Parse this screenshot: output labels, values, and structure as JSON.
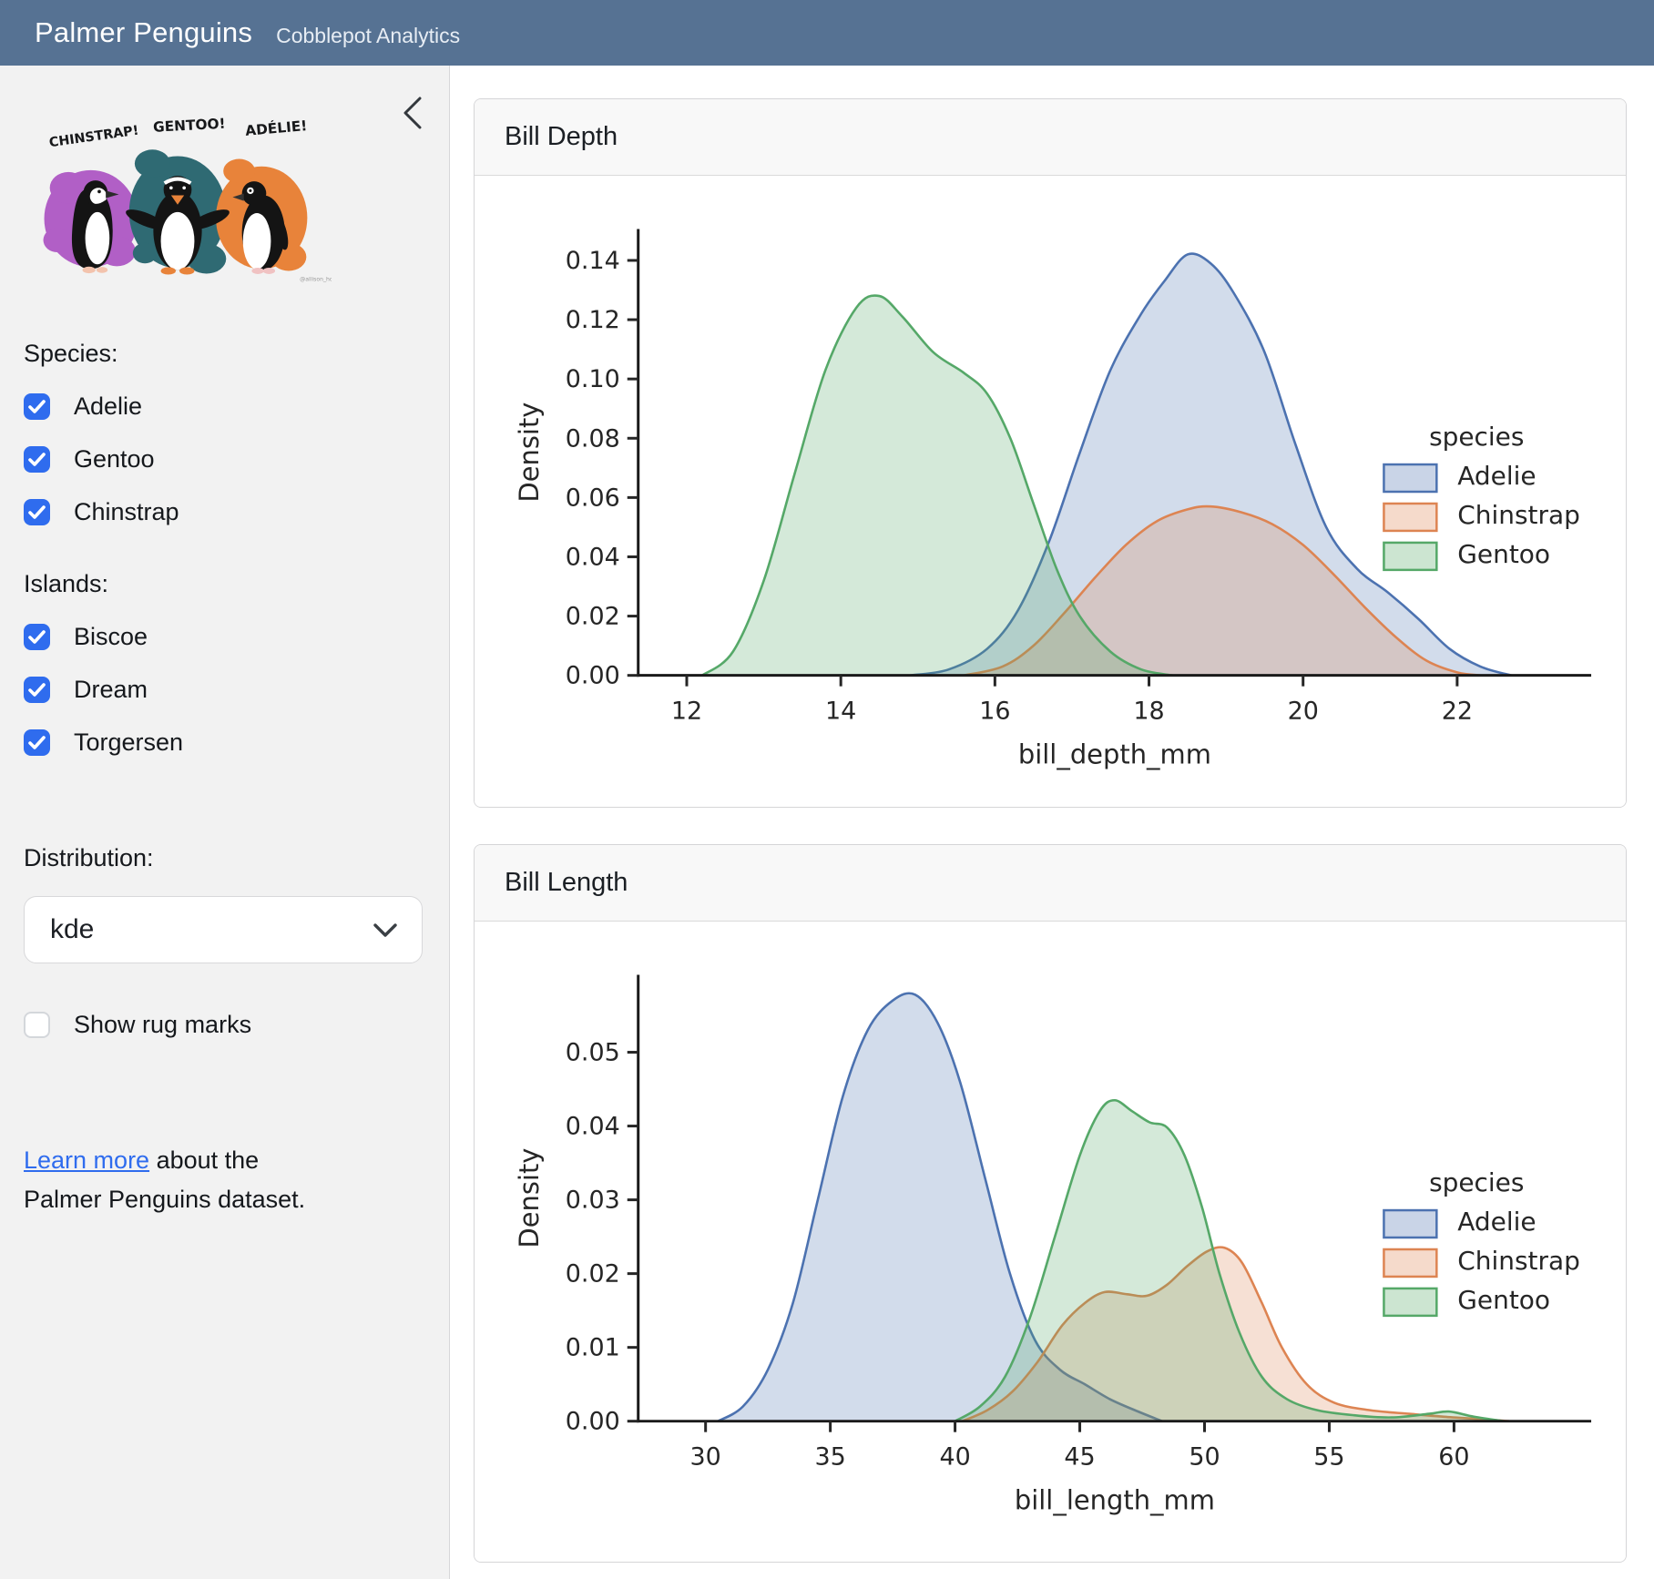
{
  "header": {
    "title": "Palmer Penguins",
    "subtitle": "Cobblepot Analytics"
  },
  "sidebar": {
    "artwork": {
      "labels": [
        "CHINSTRAP!",
        "GENTOO!",
        "ADÉLIE!"
      ],
      "credit": "@allison_horst",
      "blob_colors": [
        "#b15fc6",
        "#2f6a73",
        "#e8833a"
      ]
    },
    "species": {
      "heading": "Species:",
      "options": [
        {
          "label": "Adelie",
          "checked": true
        },
        {
          "label": "Gentoo",
          "checked": true
        },
        {
          "label": "Chinstrap",
          "checked": true
        }
      ]
    },
    "islands": {
      "heading": "Islands:",
      "options": [
        {
          "label": "Biscoe",
          "checked": true
        },
        {
          "label": "Dream",
          "checked": true
        },
        {
          "label": "Torgersen",
          "checked": true
        }
      ]
    },
    "distribution": {
      "heading": "Distribution:",
      "value": "kde"
    },
    "rug": {
      "label": "Show rug marks",
      "checked": false
    },
    "footer": {
      "link_text": "Learn more",
      "text_after": " about the Palmer Penguins dataset."
    }
  },
  "cards": [
    {
      "title": "Bill Depth"
    },
    {
      "title": "Bill Length"
    }
  ],
  "colors": {
    "header_bg": "#567293",
    "accent_blue": "#2f6cee",
    "adelie": "#4c72b0",
    "chinstrap": "#dd8452",
    "gentoo": "#55a868",
    "axis": "#262626"
  },
  "chart_data": [
    {
      "type": "area",
      "kind": "kde-density",
      "title": "Bill Depth",
      "xlabel": "bill_depth_mm",
      "ylabel": "Density",
      "xlim": [
        11.37,
        23.74
      ],
      "ylim": [
        0,
        0.1506
      ],
      "xticks": [
        12,
        14,
        16,
        18,
        20,
        22
      ],
      "yticks": [
        0,
        0.02,
        0.04,
        0.06,
        0.08,
        0.1,
        0.12,
        0.14
      ],
      "ytick_decimals": 2,
      "grid": false,
      "legend": {
        "title": "species",
        "position": "center-right"
      },
      "series": [
        {
          "name": "Adelie",
          "color": "#4c72b0",
          "points": [
            [
              14.9,
              0
            ],
            [
              15.4,
              0.002
            ],
            [
              15.9,
              0.009
            ],
            [
              16.3,
              0.022
            ],
            [
              16.7,
              0.045
            ],
            [
              17.1,
              0.075
            ],
            [
              17.5,
              0.103
            ],
            [
              17.9,
              0.122
            ],
            [
              18.2,
              0.133
            ],
            [
              18.5,
              0.142
            ],
            [
              18.8,
              0.139
            ],
            [
              19.1,
              0.129
            ],
            [
              19.5,
              0.109
            ],
            [
              19.9,
              0.078
            ],
            [
              20.3,
              0.05
            ],
            [
              20.7,
              0.036
            ],
            [
              21.1,
              0.028
            ],
            [
              21.5,
              0.019
            ],
            [
              21.9,
              0.009
            ],
            [
              22.3,
              0.003
            ],
            [
              22.7,
              0
            ]
          ]
        },
        {
          "name": "Chinstrap",
          "color": "#dd8452",
          "points": [
            [
              15.6,
              0
            ],
            [
              16.1,
              0.003
            ],
            [
              16.5,
              0.01
            ],
            [
              16.9,
              0.021
            ],
            [
              17.3,
              0.033
            ],
            [
              17.7,
              0.044
            ],
            [
              18.1,
              0.052
            ],
            [
              18.5,
              0.056
            ],
            [
              18.8,
              0.057
            ],
            [
              19.2,
              0.055
            ],
            [
              19.6,
              0.051
            ],
            [
              20.0,
              0.044
            ],
            [
              20.4,
              0.034
            ],
            [
              20.8,
              0.023
            ],
            [
              21.2,
              0.013
            ],
            [
              21.6,
              0.005
            ],
            [
              22.0,
              0.001
            ],
            [
              22.3,
              0
            ]
          ]
        },
        {
          "name": "Gentoo",
          "color": "#55a868",
          "points": [
            [
              12.2,
              0
            ],
            [
              12.6,
              0.008
            ],
            [
              13.0,
              0.032
            ],
            [
              13.4,
              0.068
            ],
            [
              13.8,
              0.103
            ],
            [
              14.2,
              0.124
            ],
            [
              14.5,
              0.128
            ],
            [
              14.8,
              0.121
            ],
            [
              15.2,
              0.109
            ],
            [
              15.6,
              0.102
            ],
            [
              15.9,
              0.095
            ],
            [
              16.2,
              0.08
            ],
            [
              16.5,
              0.058
            ],
            [
              16.8,
              0.036
            ],
            [
              17.1,
              0.02
            ],
            [
              17.5,
              0.008
            ],
            [
              17.9,
              0.002
            ],
            [
              18.3,
              0
            ]
          ]
        }
      ]
    },
    {
      "type": "area",
      "kind": "kde-density",
      "title": "Bill Length",
      "xlabel": "bill_length_mm",
      "ylabel": "Density",
      "xlim": [
        27.3,
        65.5
      ],
      "ylim": [
        0,
        0.0605
      ],
      "xticks": [
        30,
        35,
        40,
        45,
        50,
        55,
        60
      ],
      "yticks": [
        0,
        0.01,
        0.02,
        0.03,
        0.04,
        0.05
      ],
      "ytick_decimals": 2,
      "grid": false,
      "legend": {
        "title": "species",
        "position": "center-right"
      },
      "series": [
        {
          "name": "Adelie",
          "color": "#4c72b0",
          "points": [
            [
              30.5,
              0
            ],
            [
              31.5,
              0.002
            ],
            [
              32.5,
              0.007
            ],
            [
              33.5,
              0.016
            ],
            [
              34.5,
              0.03
            ],
            [
              35.5,
              0.044
            ],
            [
              36.5,
              0.053
            ],
            [
              37.5,
              0.057
            ],
            [
              38.4,
              0.0578
            ],
            [
              39.3,
              0.054
            ],
            [
              40.2,
              0.046
            ],
            [
              41.2,
              0.033
            ],
            [
              42.2,
              0.02
            ],
            [
              43.2,
              0.011
            ],
            [
              44.2,
              0.007
            ],
            [
              45.2,
              0.005
            ],
            [
              46.2,
              0.003
            ],
            [
              47.2,
              0.0015
            ],
            [
              48.3,
              0
            ]
          ]
        },
        {
          "name": "Chinstrap",
          "color": "#dd8452",
          "points": [
            [
              40.3,
              0
            ],
            [
              41.3,
              0.0015
            ],
            [
              42.3,
              0.004
            ],
            [
              43.3,
              0.008
            ],
            [
              44.3,
              0.013
            ],
            [
              45.2,
              0.016
            ],
            [
              46.0,
              0.0175
            ],
            [
              46.9,
              0.0172
            ],
            [
              47.7,
              0.017
            ],
            [
              48.5,
              0.0185
            ],
            [
              49.3,
              0.021
            ],
            [
              50.1,
              0.023
            ],
            [
              50.8,
              0.0235
            ],
            [
              51.5,
              0.0215
            ],
            [
              52.3,
              0.016
            ],
            [
              53.1,
              0.01
            ],
            [
              54.1,
              0.005
            ],
            [
              55.2,
              0.0025
            ],
            [
              56.6,
              0.0015
            ],
            [
              58.2,
              0.001
            ],
            [
              59.6,
              0.0006
            ],
            [
              61.0,
              0.0003
            ],
            [
              62.2,
              0
            ]
          ]
        },
        {
          "name": "Gentoo",
          "color": "#55a868",
          "points": [
            [
              40.0,
              0
            ],
            [
              41.0,
              0.002
            ],
            [
              42.0,
              0.006
            ],
            [
              43.0,
              0.014
            ],
            [
              44.0,
              0.025
            ],
            [
              45.0,
              0.036
            ],
            [
              45.8,
              0.042
            ],
            [
              46.4,
              0.0435
            ],
            [
              47.1,
              0.042
            ],
            [
              47.8,
              0.0405
            ],
            [
              48.5,
              0.0398
            ],
            [
              49.2,
              0.036
            ],
            [
              49.9,
              0.029
            ],
            [
              50.6,
              0.02
            ],
            [
              51.4,
              0.012
            ],
            [
              52.3,
              0.006
            ],
            [
              53.3,
              0.003
            ],
            [
              54.5,
              0.0015
            ],
            [
              56.0,
              0.0008
            ],
            [
              57.5,
              0.0005
            ],
            [
              59.0,
              0.001
            ],
            [
              59.8,
              0.0013
            ],
            [
              60.8,
              0.0006
            ],
            [
              62.0,
              0
            ]
          ]
        }
      ]
    }
  ]
}
